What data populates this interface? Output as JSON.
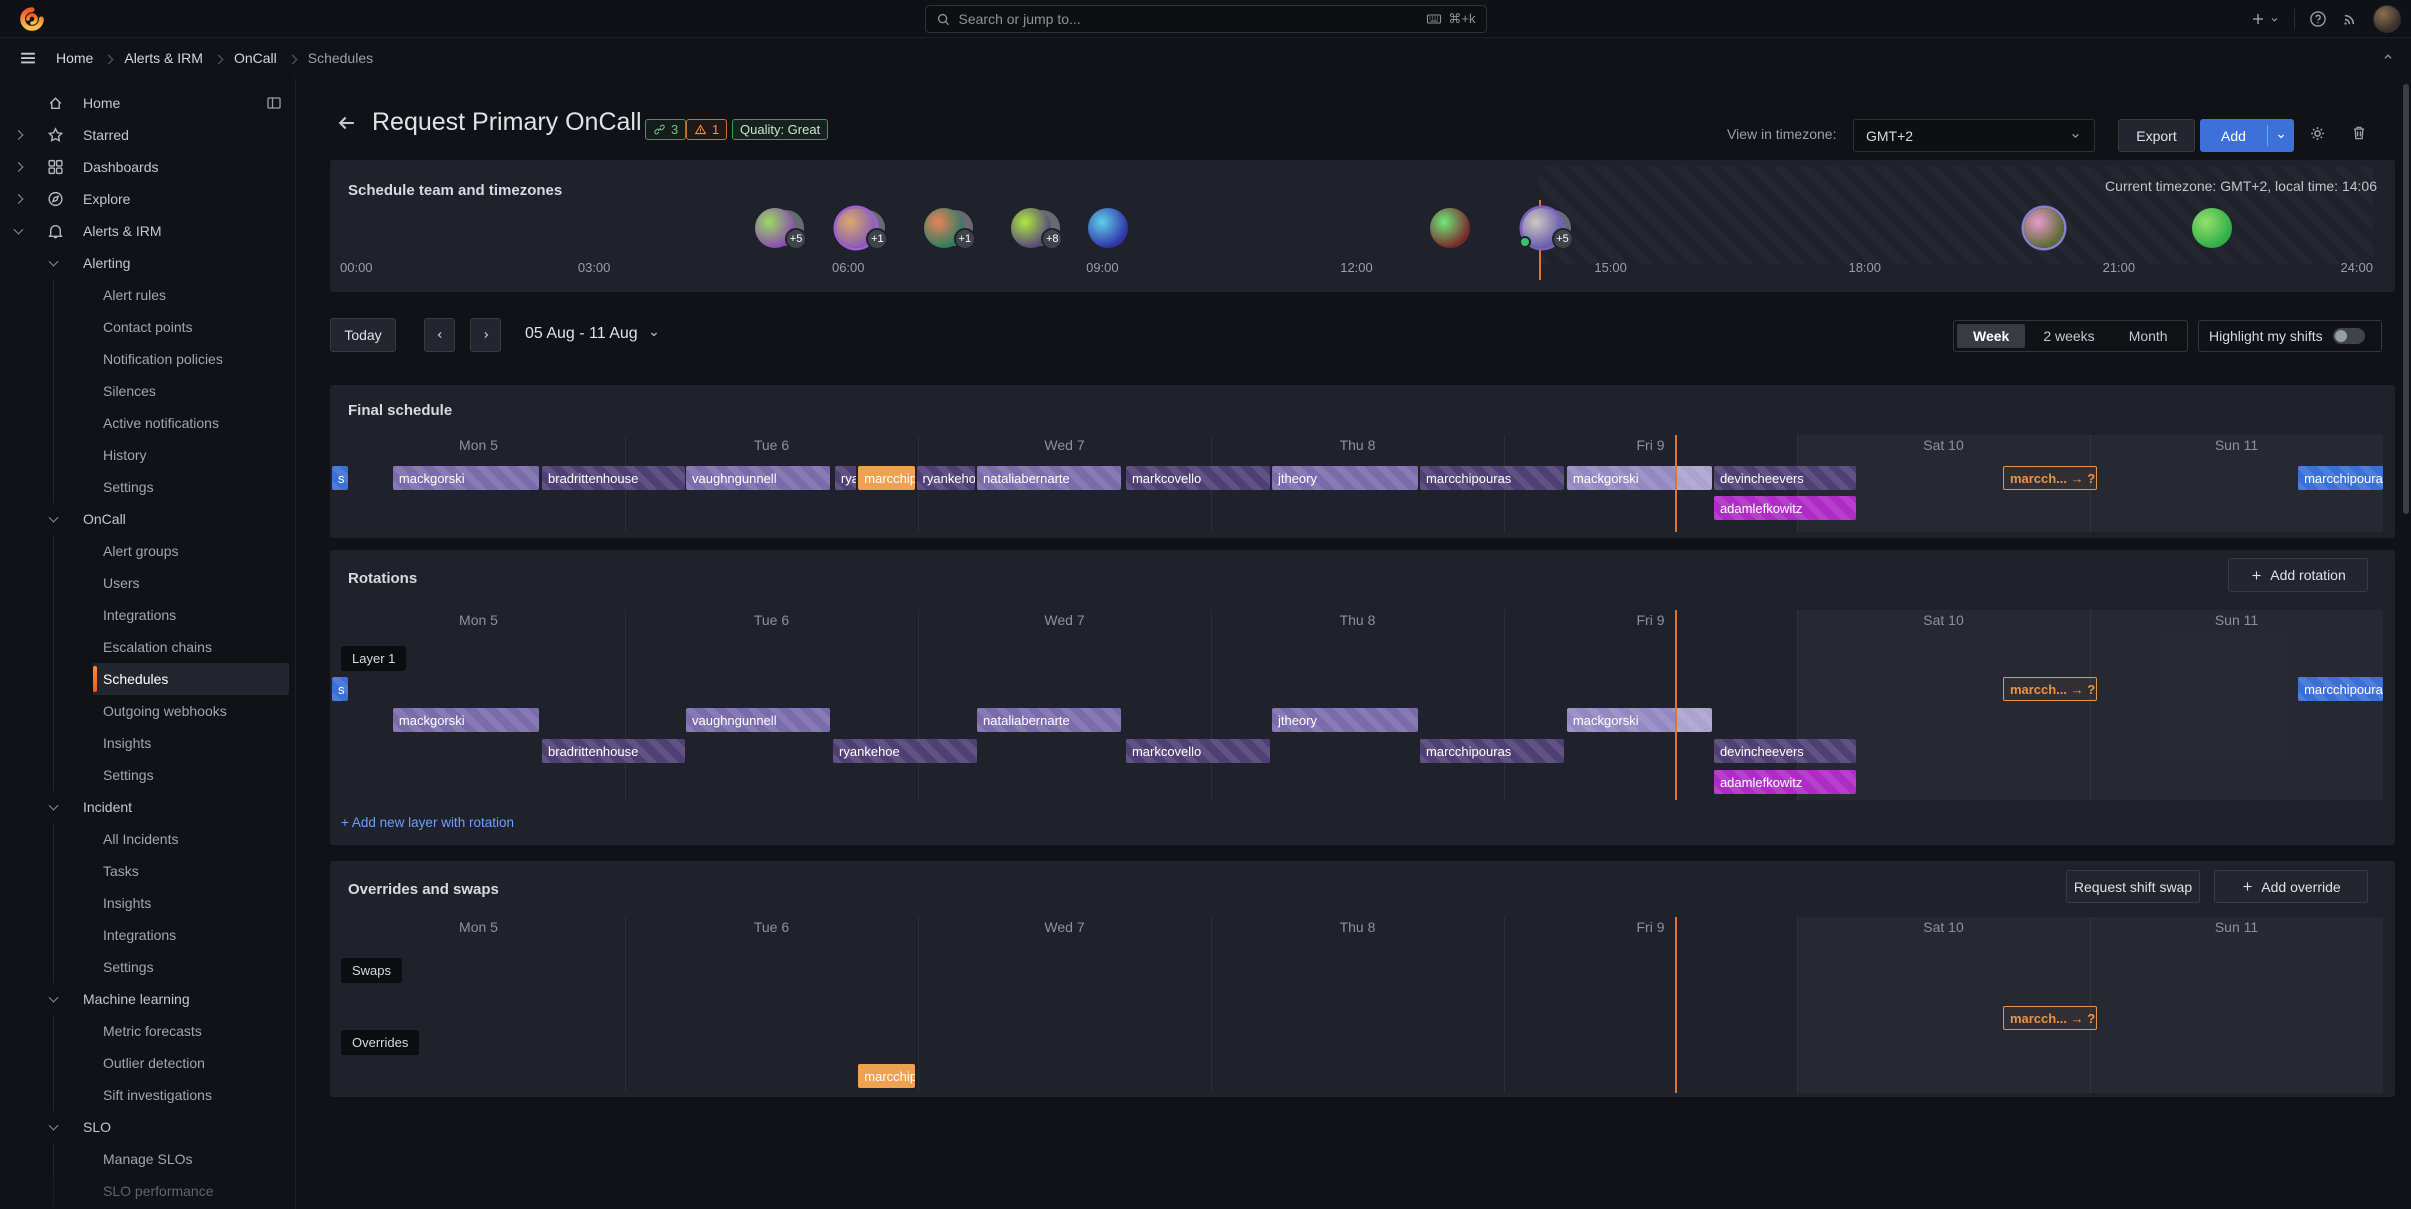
{
  "topnav": {
    "search_placeholder": "Search or jump to...",
    "shortcut": "⌘+k"
  },
  "breadcrumb": {
    "items": [
      "Home",
      "Alerts & IRM",
      "OnCall",
      "Schedules"
    ]
  },
  "sidebar": {
    "items": [
      {
        "label": "Home",
        "level": 0,
        "icon": "home",
        "trailing": "panel-toggle"
      },
      {
        "label": "Starred",
        "level": 0,
        "icon": "star",
        "chevron": "right"
      },
      {
        "label": "Dashboards",
        "level": 0,
        "icon": "apps",
        "chevron": "right"
      },
      {
        "label": "Explore",
        "level": 0,
        "icon": "compass",
        "chevron": "right"
      },
      {
        "label": "Alerts & IRM",
        "level": 0,
        "icon": "bell",
        "chevron": "down"
      },
      {
        "label": "Alerting",
        "level": 1,
        "chevron": "down"
      },
      {
        "label": "Alert rules",
        "level": 2
      },
      {
        "label": "Contact points",
        "level": 2
      },
      {
        "label": "Notification policies",
        "level": 2
      },
      {
        "label": "Silences",
        "level": 2
      },
      {
        "label": "Active notifications",
        "level": 2
      },
      {
        "label": "History",
        "level": 2
      },
      {
        "label": "Settings",
        "level": 2
      },
      {
        "label": "OnCall",
        "level": 1,
        "chevron": "down"
      },
      {
        "label": "Alert groups",
        "level": 2
      },
      {
        "label": "Users",
        "level": 2
      },
      {
        "label": "Integrations",
        "level": 2
      },
      {
        "label": "Escalation chains",
        "level": 2
      },
      {
        "label": "Schedules",
        "level": 2,
        "active": true
      },
      {
        "label": "Outgoing webhooks",
        "level": 2
      },
      {
        "label": "Insights",
        "level": 2
      },
      {
        "label": "Settings",
        "level": 2
      },
      {
        "label": "Incident",
        "level": 1,
        "chevron": "down"
      },
      {
        "label": "All Incidents",
        "level": 2
      },
      {
        "label": "Tasks",
        "level": 2
      },
      {
        "label": "Insights",
        "level": 2
      },
      {
        "label": "Integrations",
        "level": 2
      },
      {
        "label": "Settings",
        "level": 2
      },
      {
        "label": "Machine learning",
        "level": 1,
        "chevron": "down"
      },
      {
        "label": "Metric forecasts",
        "level": 2
      },
      {
        "label": "Outlier detection",
        "level": 2
      },
      {
        "label": "Sift investigations",
        "level": 2
      },
      {
        "label": "SLO",
        "level": 1,
        "chevron": "down"
      },
      {
        "label": "Manage SLOs",
        "level": 2
      },
      {
        "label": "SLO performance",
        "level": 2,
        "faded": true
      }
    ]
  },
  "header": {
    "title": "Request Primary OnCall",
    "link_badge": "3",
    "warning_badge": "1",
    "quality_badge": "Quality: Great",
    "timezone_label": "View in timezone:",
    "timezone_value": "GMT+2",
    "export_label": "Export",
    "add_label": "Add"
  },
  "team": {
    "title": "Schedule team and timezones",
    "timezone_info": "Current timezone: GMT+2, local time: 14:06",
    "time_labels": [
      "00:00",
      "03:00",
      "06:00",
      "09:00",
      "12:00",
      "15:00",
      "18:00",
      "21:00",
      "24:00"
    ],
    "now_pct": 59,
    "avatars": [
      {
        "x": 21.4,
        "c1": "#8a4fb0",
        "c2": "#9adb5f",
        "badge": "+5",
        "stack": true
      },
      {
        "x": 25.4,
        "c1": "#8a5fb5",
        "c2": "#d9a96a",
        "ring": "#a35fd6",
        "badge": "+1",
        "stack": true
      },
      {
        "x": 29.7,
        "c1": "#2e7d5f",
        "c2": "#e8835a",
        "badge": "+1",
        "stack": true
      },
      {
        "x": 34.0,
        "c1": "#5a4a7a",
        "c2": "#aee83f",
        "badge": "+8",
        "stack": true
      },
      {
        "x": 37.8,
        "c1": "#2f35a8",
        "c2": "#5fd0e8"
      },
      {
        "x": 54.6,
        "c1": "#7a2a2a",
        "c2": "#6fe87a"
      },
      {
        "x": 59.1,
        "c1": "#6a5fae",
        "c2": "#cfc9c2",
        "ring": "#7a5fc0",
        "badge": "+5",
        "stack": true,
        "dot": "#35c46a"
      },
      {
        "x": 83.8,
        "c1": "#5d6b33",
        "c2": "#e89ad0",
        "ring": "#8a7fd0"
      },
      {
        "x": 92.1,
        "c1": "#2fae4a",
        "c2": "#97e06a"
      }
    ]
  },
  "toolbar": {
    "today": "Today",
    "date_range": "05 Aug - 11 Aug",
    "views": [
      "Week",
      "2 weeks",
      "Month"
    ],
    "selected_view": "Week",
    "highlight_label": "Highlight my shifts"
  },
  "schedule": {
    "days": [
      "Mon 5",
      "Tue 6",
      "Wed 7",
      "Thu 8",
      "Fri 9",
      "Sat 10",
      "Sun 11"
    ],
    "now_pct": 65.5,
    "weekend_start_pct": 71.43
  },
  "colors": {
    "pm": "#7a6bab",
    "pd": "#4e3f74",
    "pl": "#9488c2",
    "or": "#eda24f",
    "mg": "#ae2bc5",
    "bl": "#3b6fd6"
  },
  "final_schedule": {
    "title": "Final schedule",
    "row1": [
      {
        "l": "s",
        "c": "bl",
        "x": 0,
        "w": 0.8
      },
      {
        "l": "mackgorski",
        "c": "pm",
        "x": 2.97,
        "w": 7.1
      },
      {
        "l": "bradrittenhouse",
        "c": "pd",
        "x": 10.24,
        "w": 6.95
      },
      {
        "l": "vaughngunnell",
        "c": "pm",
        "x": 17.26,
        "w": 7.0
      },
      {
        "l": "rya",
        "c": "pd",
        "x": 24.52,
        "w": 1.05
      },
      {
        "l": "marcchip",
        "c": "or",
        "x": 25.66,
        "w": 2.75
      },
      {
        "l": "ryankeho",
        "c": "pd",
        "x": 28.5,
        "w": 2.85
      },
      {
        "l": "nataliabernarte",
        "c": "pm",
        "x": 31.45,
        "w": 7.0
      },
      {
        "l": "markcovello",
        "c": "pd",
        "x": 38.71,
        "w": 7.0
      },
      {
        "l": "jtheory",
        "c": "pm",
        "x": 45.83,
        "w": 7.1
      },
      {
        "l": "marcchipouras",
        "c": "pd",
        "x": 53.05,
        "w": 7.0
      },
      {
        "l": "mackgorski",
        "c": "pl",
        "x": 60.21,
        "w": 7.05,
        "tail": 75
      },
      {
        "l": "devincheevers",
        "c": "pd",
        "x": 67.38,
        "w": 6.95
      },
      {
        "l": "marcch... → ?",
        "type": "swap",
        "x": 81.47,
        "w": 4.6
      },
      {
        "l": "marcchipoura",
        "c": "bl",
        "x": 95.86,
        "w": 4.14
      }
    ],
    "row2": [
      {
        "l": "adamlefkowitz",
        "c": "mg",
        "x": 67.38,
        "w": 6.95
      }
    ]
  },
  "rotations": {
    "title": "Rotations",
    "layer_label": "Layer 1",
    "add_rotation_label": "Add rotation",
    "add_layer_label": "+ Add new layer with rotation",
    "level0": [
      {
        "l": "s",
        "c": "bl",
        "x": 0,
        "w": 0.8
      },
      {
        "l": "marcch... → ?",
        "type": "swap",
        "x": 81.47,
        "w": 4.6
      },
      {
        "l": "marcchipoura",
        "c": "bl",
        "x": 95.86,
        "w": 4.14
      }
    ],
    "level1": [
      {
        "l": "mackgorski",
        "c": "pm",
        "x": 2.97,
        "w": 7.1
      },
      {
        "l": "vaughngunnell",
        "c": "pm",
        "x": 17.26,
        "w": 7.0
      },
      {
        "l": "nataliabernarte",
        "c": "pm",
        "x": 31.45,
        "w": 7.0
      },
      {
        "l": "jtheory",
        "c": "pm",
        "x": 45.83,
        "w": 7.1
      },
      {
        "l": "mackgorski",
        "c": "pl",
        "x": 60.21,
        "w": 7.05,
        "tail": 75
      }
    ],
    "level2": [
      {
        "l": "bradrittenhouse",
        "c": "pd",
        "x": 10.24,
        "w": 6.95
      },
      {
        "l": "ryankehoe",
        "c": "pd",
        "x": 24.43,
        "w": 7.0
      },
      {
        "l": "markcovello",
        "c": "pd",
        "x": 38.71,
        "w": 7.0
      },
      {
        "l": "marcchipouras",
        "c": "pd",
        "x": 53.05,
        "w": 7.0
      },
      {
        "l": "devincheevers",
        "c": "pd",
        "x": 67.38,
        "w": 6.95
      }
    ],
    "level3": [
      {
        "l": "adamlefkowitz",
        "c": "mg",
        "x": 67.38,
        "w": 6.95
      }
    ]
  },
  "overrides": {
    "title": "Overrides and swaps",
    "request_swap_label": "Request shift swap",
    "add_override_label": "Add override",
    "swaps_label": "Swaps",
    "overrides_label": "Overrides",
    "swaps_row": [
      {
        "l": "marcch... → ?",
        "type": "swap",
        "x": 81.47,
        "w": 4.6
      }
    ],
    "overrides_row": [
      {
        "l": "marcchip",
        "c": "or",
        "x": 25.66,
        "w": 2.75
      }
    ]
  }
}
